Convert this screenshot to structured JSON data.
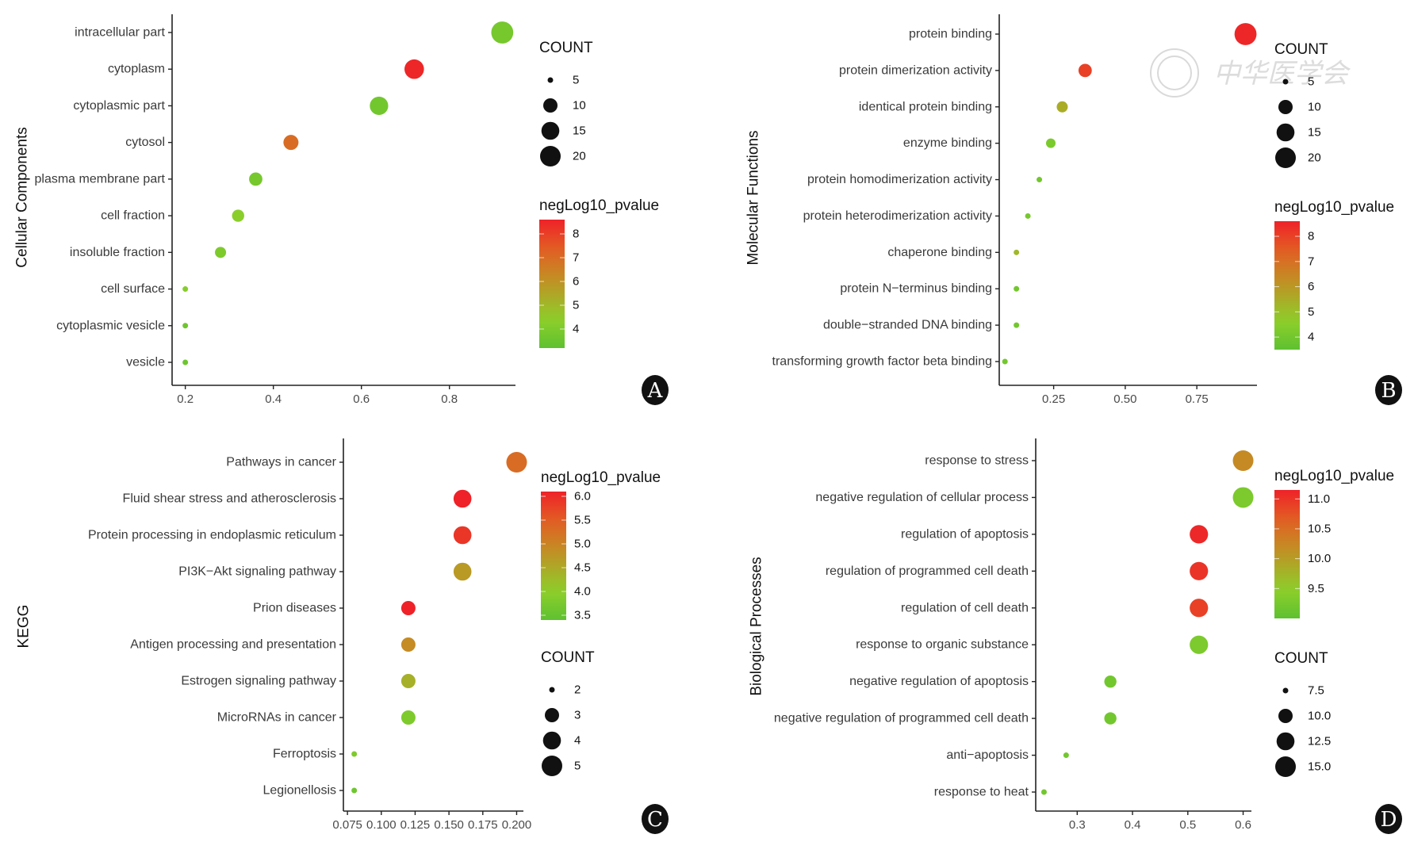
{
  "watermark": {
    "text": "中华医学会"
  },
  "chart_data": [
    {
      "panel": "A",
      "type": "scatter",
      "subtype": "bubble",
      "ylabel": "Cellular Components",
      "xlabel": "",
      "xlim": [
        0.17,
        0.95
      ],
      "xticks": [
        0.2,
        0.4,
        0.6,
        0.8
      ],
      "xtick_labels": [
        "0.2",
        "0.4",
        "0.6",
        "0.8"
      ],
      "categories": [
        "intracellular part",
        "cytoplasm",
        "cytoplasmic part",
        "cytosol",
        "plasma membrane part",
        "cell fraction",
        "insoluble fraction",
        "cell surface",
        "cytoplasmic vesicle",
        "vesicle"
      ],
      "x": [
        0.92,
        0.72,
        0.64,
        0.44,
        0.36,
        0.32,
        0.28,
        0.2,
        0.2,
        0.2
      ],
      "count": [
        23,
        18,
        16,
        11,
        9,
        8,
        7,
        5,
        5,
        5
      ],
      "negLog10_pvalue": [
        3.8,
        8.5,
        3.7,
        7.0,
        3.8,
        4.3,
        4.0,
        4.2,
        3.6,
        3.6
      ],
      "size_legend": {
        "title": "COUNT",
        "values": [
          5,
          10,
          15,
          20
        ],
        "labels": [
          "5",
          "10",
          "15",
          "20"
        ]
      },
      "color_legend": {
        "title": "negLog10_pvalue",
        "min": 3.2,
        "max": 8.6,
        "ticks": [
          8,
          7,
          6,
          5,
          4
        ],
        "labels": [
          "8",
          "7",
          "6",
          "5",
          "4"
        ],
        "low_color": "#5ec130",
        "mid_color": "#8dcf2b",
        "high_color": "#ee2228"
      },
      "legend_order": "size-first",
      "letter": "A"
    },
    {
      "panel": "B",
      "type": "scatter",
      "subtype": "bubble",
      "ylabel": "Molecular Functions",
      "xlabel": "",
      "xlim": [
        0.06,
        0.96
      ],
      "xticks": [
        0.25,
        0.5,
        0.75
      ],
      "xtick_labels": [
        "0.25",
        "0.50",
        "0.75"
      ],
      "categories": [
        "protein binding",
        "protein dimerization activity",
        "identical protein binding",
        "enzyme binding",
        "protein homodimerization activity",
        "protein heterodimerization activity",
        "chaperone binding",
        "protein N−terminus binding",
        "double−stranded DNA binding",
        "transforming growth factor beta binding"
      ],
      "x": [
        0.92,
        0.36,
        0.28,
        0.24,
        0.2,
        0.16,
        0.12,
        0.12,
        0.12,
        0.08
      ],
      "count": [
        23,
        9,
        7,
        6,
        5,
        5,
        3,
        3,
        3,
        2
      ],
      "negLog10_pvalue": [
        8.5,
        8.0,
        5.5,
        4.2,
        4.0,
        4.1,
        5.2,
        4.0,
        4.0,
        4.0
      ],
      "size_legend": {
        "title": "COUNT",
        "values": [
          5,
          10,
          15,
          20
        ],
        "labels": [
          "5",
          "10",
          "15",
          "20"
        ]
      },
      "color_legend": {
        "title": "negLog10_pvalue",
        "min": 3.5,
        "max": 8.6,
        "ticks": [
          8,
          7,
          6,
          5,
          4
        ],
        "labels": [
          "8",
          "7",
          "6",
          "5",
          "4"
        ],
        "low_color": "#5ec130",
        "mid_color": "#8dcf2b",
        "high_color": "#ee2228"
      },
      "legend_order": "size-first",
      "letter": "B"
    },
    {
      "panel": "C",
      "type": "scatter",
      "subtype": "bubble",
      "ylabel": "KEGG",
      "xlabel": "",
      "xlim": [
        0.072,
        0.205
      ],
      "xticks": [
        0.075,
        0.1,
        0.125,
        0.15,
        0.175,
        0.2
      ],
      "xtick_labels": [
        "0.075",
        "0.100",
        "0.125",
        "0.150",
        "0.175",
        "0.200"
      ],
      "categories": [
        "Pathways in cancer",
        "Fluid shear stress and atherosclerosis",
        "Protein processing in endoplasmic reticulum",
        "PI3K−Akt signaling pathway",
        "Prion diseases",
        "Antigen processing and presentation",
        "Estrogen signaling pathway",
        "MicroRNAs in cancer",
        "Ferroptosis",
        "Legionellosis"
      ],
      "x": [
        0.2,
        0.16,
        0.16,
        0.16,
        0.12,
        0.12,
        0.12,
        0.12,
        0.08,
        0.08
      ],
      "count": [
        5,
        4,
        4,
        4,
        3,
        3,
        3,
        3,
        2,
        2
      ],
      "negLog10_pvalue": [
        5.3,
        6.1,
        5.9,
        4.7,
        6.1,
        4.9,
        4.4,
        3.8,
        3.8,
        3.6
      ],
      "size_legend": {
        "title": "COUNT",
        "values": [
          2,
          3,
          4,
          5
        ],
        "labels": [
          "2",
          "3",
          "4",
          "5"
        ]
      },
      "color_legend": {
        "title": "negLog10_pvalue",
        "min": 3.4,
        "max": 6.1,
        "ticks": [
          6.0,
          5.5,
          5.0,
          4.5,
          4.0,
          3.5
        ],
        "labels": [
          "6.0",
          "5.5",
          "5.0",
          "4.5",
          "4.0",
          "3.5"
        ],
        "low_color": "#5ec130",
        "mid_color": "#8dcf2b",
        "high_color": "#ee2228"
      },
      "legend_order": "color-first",
      "letter": "C"
    },
    {
      "panel": "D",
      "type": "scatter",
      "subtype": "bubble",
      "ylabel": "Biological Processes",
      "xlabel": "",
      "xlim": [
        0.225,
        0.615
      ],
      "xticks": [
        0.3,
        0.4,
        0.5,
        0.6
      ],
      "xtick_labels": [
        "0.3",
        "0.4",
        "0.5",
        "0.6"
      ],
      "categories": [
        "response to stress",
        "negative regulation of cellular process",
        "regulation of apoptosis",
        "regulation of programmed cell death",
        "regulation of cell death",
        "response to organic substance",
        "negative regulation of apoptosis",
        "negative regulation of programmed cell death",
        "anti−apoptosis",
        "response to heat"
      ],
      "x": [
        0.6,
        0.6,
        0.52,
        0.52,
        0.52,
        0.52,
        0.36,
        0.36,
        0.28,
        0.24
      ],
      "count": [
        15,
        15,
        13,
        13,
        13,
        13,
        9,
        9,
        7,
        6
      ],
      "negLog10_pvalue": [
        10.2,
        9.3,
        11.1,
        11.0,
        10.9,
        9.3,
        9.2,
        9.2,
        9.2,
        9.2
      ],
      "size_legend": {
        "title": "COUNT",
        "values": [
          7.5,
          10.0,
          12.5,
          15.0
        ],
        "labels": [
          "7.5",
          "10.0",
          "12.5",
          "15.0"
        ]
      },
      "color_legend": {
        "title": "negLog10_pvalue",
        "min": 9.0,
        "max": 11.15,
        "ticks": [
          11.0,
          10.5,
          10.0,
          9.5
        ],
        "labels": [
          "11.0",
          "10.5",
          "10.0",
          "9.5"
        ],
        "low_color": "#5ec130",
        "mid_color": "#8dcf2b",
        "high_color": "#ee2228"
      },
      "legend_order": "color-first",
      "letter": "D"
    }
  ]
}
